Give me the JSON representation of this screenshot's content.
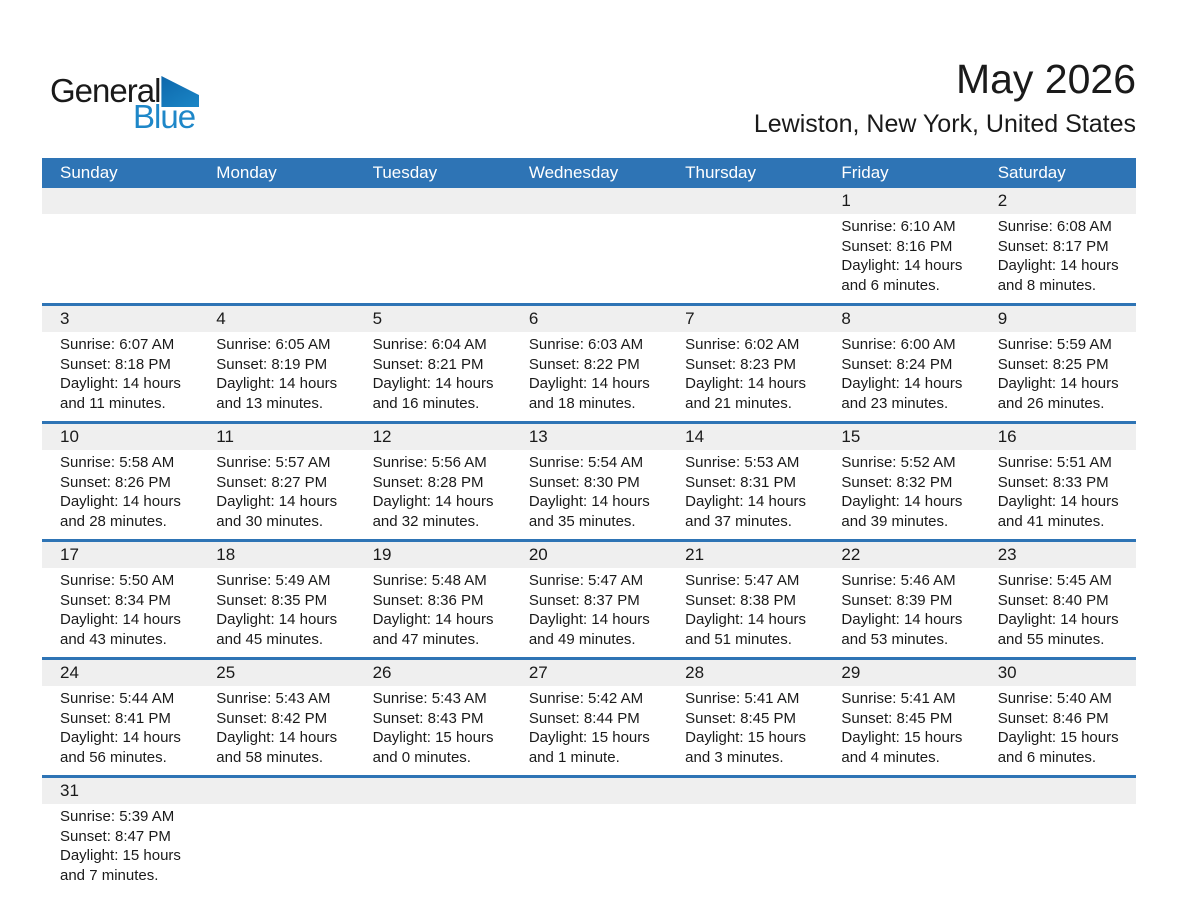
{
  "logo": {
    "part1": "General",
    "part2": "Blue"
  },
  "header": {
    "title": "May 2026",
    "subtitle": "Lewiston, New York, United States"
  },
  "weekday_header": {
    "labels": [
      "Sunday",
      "Monday",
      "Tuesday",
      "Wednesday",
      "Thursday",
      "Friday",
      "Saturday"
    ]
  },
  "labels": {
    "sunrise": "Sunrise:",
    "sunset": "Sunset:",
    "daylight": "Daylight:"
  },
  "colors": {
    "header_blue": "#2E74B5",
    "row_separator_blue": "#2E74B5",
    "day_band_gray": "#EFEFEF",
    "logo_blue": "#1E87C8",
    "logo_triangle_blue": "#1474B6",
    "text": "#1A1A1A"
  },
  "calendar": {
    "weeks": [
      [
        null,
        null,
        null,
        null,
        null,
        {
          "day": "1",
          "sunrise": "6:10 AM",
          "sunset": "8:16 PM",
          "daylight_line1": "14 hours",
          "daylight_line2": "and 6 minutes."
        },
        {
          "day": "2",
          "sunrise": "6:08 AM",
          "sunset": "8:17 PM",
          "daylight_line1": "14 hours",
          "daylight_line2": "and 8 minutes."
        }
      ],
      [
        {
          "day": "3",
          "sunrise": "6:07 AM",
          "sunset": "8:18 PM",
          "daylight_line1": "14 hours",
          "daylight_line2": "and 11 minutes."
        },
        {
          "day": "4",
          "sunrise": "6:05 AM",
          "sunset": "8:19 PM",
          "daylight_line1": "14 hours",
          "daylight_line2": "and 13 minutes."
        },
        {
          "day": "5",
          "sunrise": "6:04 AM",
          "sunset": "8:21 PM",
          "daylight_line1": "14 hours",
          "daylight_line2": "and 16 minutes."
        },
        {
          "day": "6",
          "sunrise": "6:03 AM",
          "sunset": "8:22 PM",
          "daylight_line1": "14 hours",
          "daylight_line2": "and 18 minutes."
        },
        {
          "day": "7",
          "sunrise": "6:02 AM",
          "sunset": "8:23 PM",
          "daylight_line1": "14 hours",
          "daylight_line2": "and 21 minutes."
        },
        {
          "day": "8",
          "sunrise": "6:00 AM",
          "sunset": "8:24 PM",
          "daylight_line1": "14 hours",
          "daylight_line2": "and 23 minutes."
        },
        {
          "day": "9",
          "sunrise": "5:59 AM",
          "sunset": "8:25 PM",
          "daylight_line1": "14 hours",
          "daylight_line2": "and 26 minutes."
        }
      ],
      [
        {
          "day": "10",
          "sunrise": "5:58 AM",
          "sunset": "8:26 PM",
          "daylight_line1": "14 hours",
          "daylight_line2": "and 28 minutes."
        },
        {
          "day": "11",
          "sunrise": "5:57 AM",
          "sunset": "8:27 PM",
          "daylight_line1": "14 hours",
          "daylight_line2": "and 30 minutes."
        },
        {
          "day": "12",
          "sunrise": "5:56 AM",
          "sunset": "8:28 PM",
          "daylight_line1": "14 hours",
          "daylight_line2": "and 32 minutes."
        },
        {
          "day": "13",
          "sunrise": "5:54 AM",
          "sunset": "8:30 PM",
          "daylight_line1": "14 hours",
          "daylight_line2": "and 35 minutes."
        },
        {
          "day": "14",
          "sunrise": "5:53 AM",
          "sunset": "8:31 PM",
          "daylight_line1": "14 hours",
          "daylight_line2": "and 37 minutes."
        },
        {
          "day": "15",
          "sunrise": "5:52 AM",
          "sunset": "8:32 PM",
          "daylight_line1": "14 hours",
          "daylight_line2": "and 39 minutes."
        },
        {
          "day": "16",
          "sunrise": "5:51 AM",
          "sunset": "8:33 PM",
          "daylight_line1": "14 hours",
          "daylight_line2": "and 41 minutes."
        }
      ],
      [
        {
          "day": "17",
          "sunrise": "5:50 AM",
          "sunset": "8:34 PM",
          "daylight_line1": "14 hours",
          "daylight_line2": "and 43 minutes."
        },
        {
          "day": "18",
          "sunrise": "5:49 AM",
          "sunset": "8:35 PM",
          "daylight_line1": "14 hours",
          "daylight_line2": "and 45 minutes."
        },
        {
          "day": "19",
          "sunrise": "5:48 AM",
          "sunset": "8:36 PM",
          "daylight_line1": "14 hours",
          "daylight_line2": "and 47 minutes."
        },
        {
          "day": "20",
          "sunrise": "5:47 AM",
          "sunset": "8:37 PM",
          "daylight_line1": "14 hours",
          "daylight_line2": "and 49 minutes."
        },
        {
          "day": "21",
          "sunrise": "5:47 AM",
          "sunset": "8:38 PM",
          "daylight_line1": "14 hours",
          "daylight_line2": "and 51 minutes."
        },
        {
          "day": "22",
          "sunrise": "5:46 AM",
          "sunset": "8:39 PM",
          "daylight_line1": "14 hours",
          "daylight_line2": "and 53 minutes."
        },
        {
          "day": "23",
          "sunrise": "5:45 AM",
          "sunset": "8:40 PM",
          "daylight_line1": "14 hours",
          "daylight_line2": "and 55 minutes."
        }
      ],
      [
        {
          "day": "24",
          "sunrise": "5:44 AM",
          "sunset": "8:41 PM",
          "daylight_line1": "14 hours",
          "daylight_line2": "and 56 minutes."
        },
        {
          "day": "25",
          "sunrise": "5:43 AM",
          "sunset": "8:42 PM",
          "daylight_line1": "14 hours",
          "daylight_line2": "and 58 minutes."
        },
        {
          "day": "26",
          "sunrise": "5:43 AM",
          "sunset": "8:43 PM",
          "daylight_line1": "15 hours",
          "daylight_line2": "and 0 minutes."
        },
        {
          "day": "27",
          "sunrise": "5:42 AM",
          "sunset": "8:44 PM",
          "daylight_line1": "15 hours",
          "daylight_line2": "and 1 minute."
        },
        {
          "day": "28",
          "sunrise": "5:41 AM",
          "sunset": "8:45 PM",
          "daylight_line1": "15 hours",
          "daylight_line2": "and 3 minutes."
        },
        {
          "day": "29",
          "sunrise": "5:41 AM",
          "sunset": "8:45 PM",
          "daylight_line1": "15 hours",
          "daylight_line2": "and 4 minutes."
        },
        {
          "day": "30",
          "sunrise": "5:40 AM",
          "sunset": "8:46 PM",
          "daylight_line1": "15 hours",
          "daylight_line2": "and 6 minutes."
        }
      ],
      [
        {
          "day": "31",
          "sunrise": "5:39 AM",
          "sunset": "8:47 PM",
          "daylight_line1": "15 hours",
          "daylight_line2": "and 7 minutes."
        },
        null,
        null,
        null,
        null,
        null,
        null
      ]
    ]
  }
}
